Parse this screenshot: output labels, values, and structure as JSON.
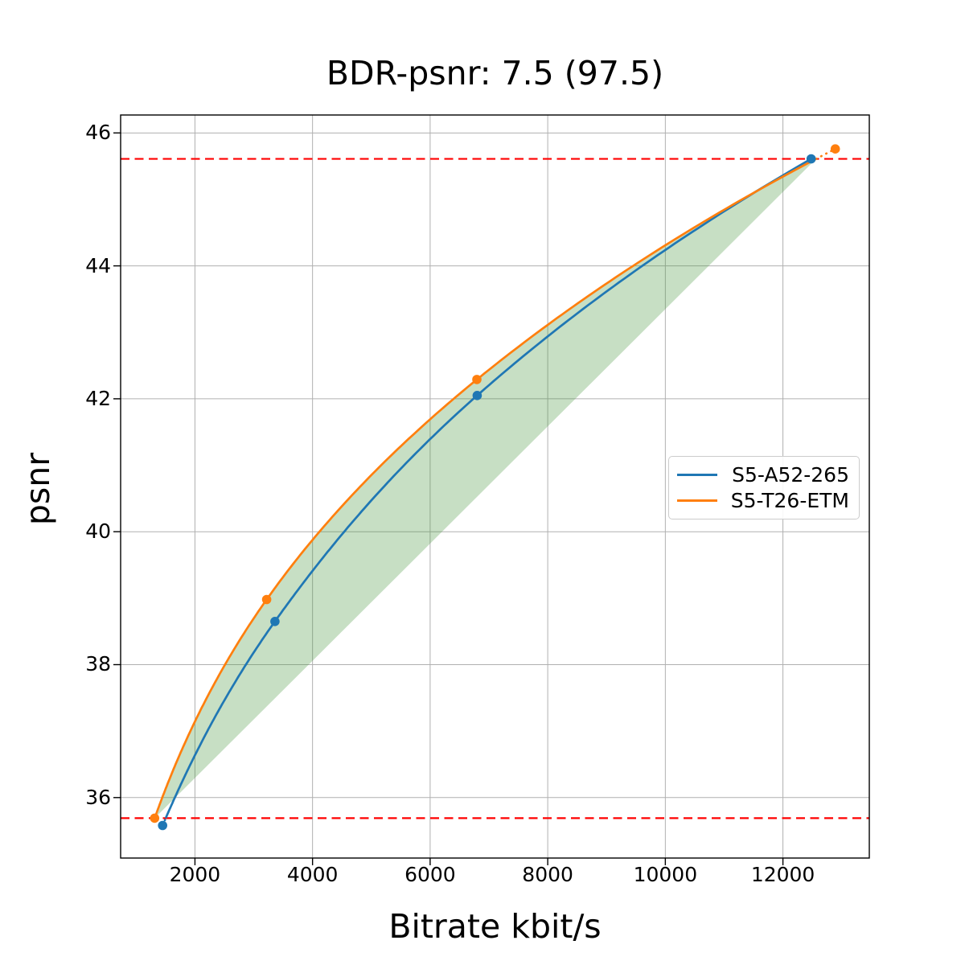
{
  "chart_data": {
    "type": "line",
    "title": "BDR-psnr: 7.5 (97.5)",
    "xlabel": "Bitrate kbit/s",
    "ylabel": "psnr",
    "xlim": [
      736,
      13469
    ],
    "ylim": [
      35.09,
      46.27
    ],
    "xticks": [
      2000,
      4000,
      6000,
      8000,
      10000,
      12000
    ],
    "yticks": [
      36,
      38,
      40,
      42,
      44,
      46
    ],
    "grid": true,
    "grid_color": "#b0b0b0",
    "border_color": "#000000",
    "interpolation": "pchip-log-x",
    "series": [
      {
        "name": "S5-A52-265",
        "color": "#1f77b4",
        "marker": "circle",
        "points": [
          [
            1450,
            35.58
          ],
          [
            3360,
            38.65
          ],
          [
            6800,
            42.05
          ],
          [
            12480,
            45.61
          ]
        ]
      },
      {
        "name": "S5-T26-ETM",
        "color": "#ff7f0e",
        "marker": "circle",
        "points": [
          [
            1315,
            35.69
          ],
          [
            3220,
            38.98
          ],
          [
            6795,
            42.29
          ],
          [
            12890,
            45.76
          ]
        ]
      }
    ],
    "overlap_region": {
      "psnr_low": 35.69,
      "psnr_high": 45.61,
      "line_color": "#ff0000",
      "line_style": "dashed",
      "fill_color": "#46963c",
      "fill_alpha": 0.3
    },
    "legend": {
      "position": "center-right",
      "entries": [
        "S5-A52-265",
        "S5-T26-ETM"
      ]
    }
  }
}
